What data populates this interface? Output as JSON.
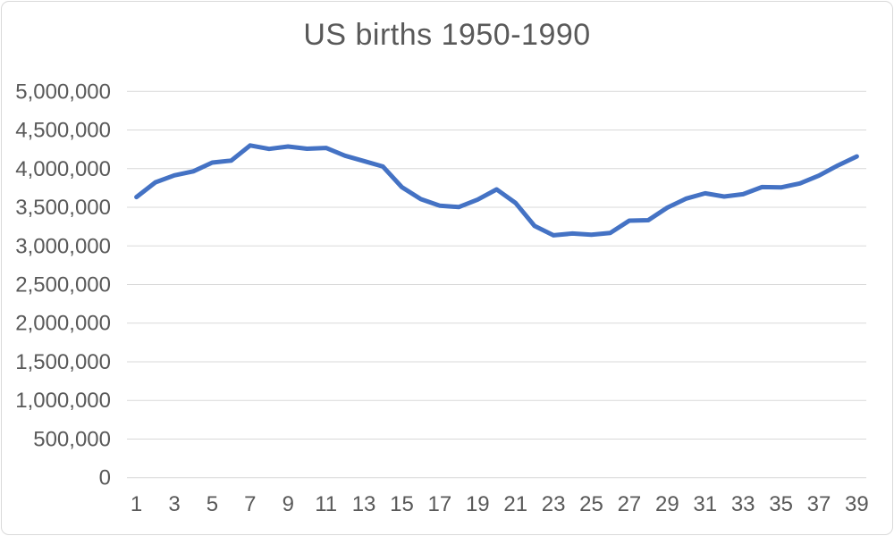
{
  "window": {
    "background": "#ffffff",
    "border_color": "#D9D9D9"
  },
  "chart_data": {
    "type": "line",
    "title": "US births 1950-1990",
    "title_color": "#595959",
    "legend": "none",
    "grid": "horizontal",
    "gridline_color": "#D9D9D9",
    "axis_text_color": "#595959",
    "ylim": [
      0,
      5000000
    ],
    "ytick_step": 500000,
    "ytick_labels": [
      "5,000,000",
      "4,500,000",
      "4,000,000",
      "3,500,000",
      "3,000,000",
      "2,500,000",
      "2,000,000",
      "1,500,000",
      "1,000,000",
      "500,000",
      "0"
    ],
    "x": [
      1,
      2,
      3,
      4,
      5,
      6,
      7,
      8,
      9,
      10,
      11,
      12,
      13,
      14,
      15,
      16,
      17,
      18,
      19,
      20,
      21,
      22,
      23,
      24,
      25,
      26,
      27,
      28,
      29,
      30,
      31,
      32,
      33,
      34,
      35,
      36,
      37,
      38,
      39
    ],
    "xtick_labels": [
      "1",
      "3",
      "5",
      "7",
      "9",
      "11",
      "13",
      "15",
      "17",
      "19",
      "21",
      "23",
      "25",
      "27",
      "29",
      "31",
      "33",
      "35",
      "37",
      "39"
    ],
    "series": [
      {
        "name": "US births",
        "color": "#4472C4",
        "values": [
          3632000,
          3823000,
          3913000,
          3965000,
          4078000,
          4104000,
          4300000,
          4255000,
          4286000,
          4258000,
          4268000,
          4167000,
          4098000,
          4027000,
          3760000,
          3606000,
          3521000,
          3502000,
          3600000,
          3731000,
          3556000,
          3258000,
          3137000,
          3160000,
          3144000,
          3168000,
          3327000,
          3333000,
          3494000,
          3612000,
          3681000,
          3639000,
          3669000,
          3761000,
          3757000,
          3809000,
          3910000,
          4041000,
          4158000
        ]
      }
    ]
  }
}
